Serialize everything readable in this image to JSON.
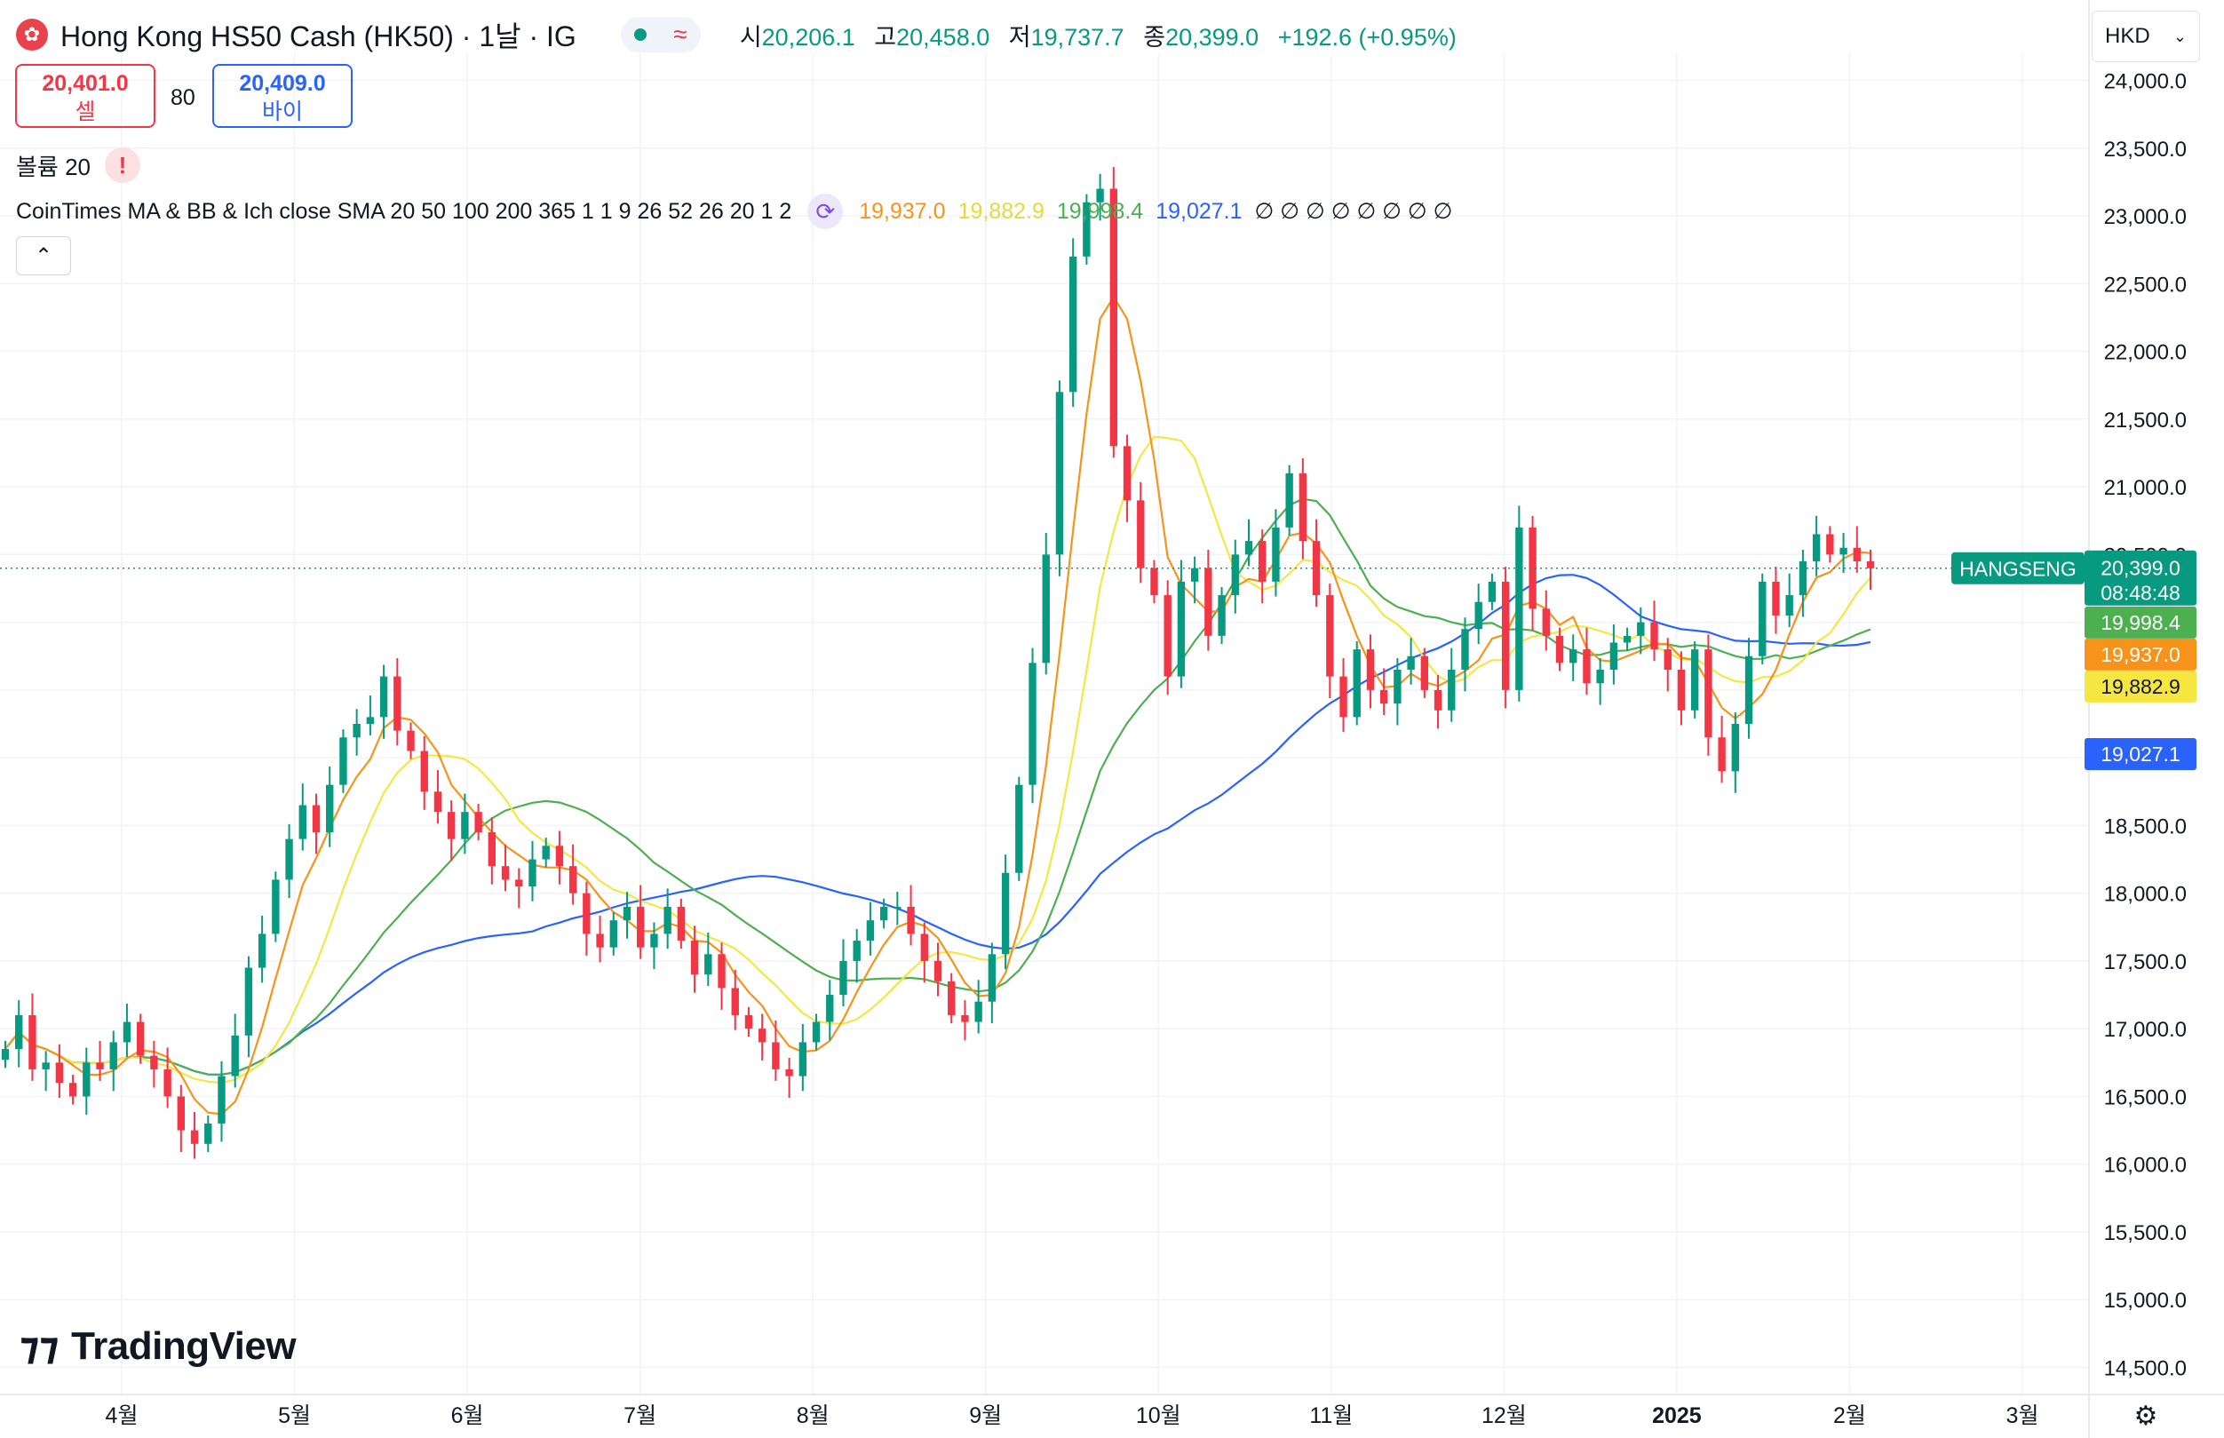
{
  "header": {
    "title": "Hong Kong HS50 Cash (HK50) · 1날 · IG",
    "ohlc": [
      {
        "k": "시",
        "v": "20,206.1"
      },
      {
        "k": "고",
        "v": "20,458.0"
      },
      {
        "k": "저",
        "v": "19,737.7"
      },
      {
        "k": "종",
        "v": "20,399.0"
      }
    ],
    "change": "+192.6 (+0.95%)",
    "sell_price": "20,401.0",
    "sell_label": "셀",
    "spread": "80",
    "buy_price": "20,409.0",
    "buy_label": "바이",
    "volume_label": "볼륨 20",
    "warning": "!",
    "indicator_name": "CoinTimes MA & BB & Ich close SMA 20 50 100 200 365 1 1 9 26 52 26 20 1 2",
    "indicator_values": [
      "19,937.0",
      "19,882.9",
      "19,998.4",
      "19,027.1",
      "∅ ∅ ∅ ∅ ∅ ∅ ∅ ∅"
    ],
    "currency": "HKD",
    "collapse_icon": "chevron-up-icon",
    "sync_icon": "sync-icon",
    "flag_icon": "hong-kong-flag-icon"
  },
  "logo": "TradingView",
  "colors": {
    "up": "#089981",
    "down": "#f23645",
    "sma20": "#f7931a",
    "sma50": "#f5e642",
    "sma100": "#4caf50",
    "sma200": "#2962ff"
  },
  "chart_data": {
    "type": "candlestick",
    "title": "Hong Kong HS50 Cash (HK50)",
    "ylim": [
      14300,
      24200
    ],
    "y_ticks": [
      "14,500.0",
      "15,000.0",
      "15,500.0",
      "16,000.0",
      "16,500.0",
      "17,000.0",
      "17,500.0",
      "18,000.0",
      "18,500.0",
      "19,000.0",
      "19,500.0",
      "20,000.0",
      "20,500.0",
      "21,000.0",
      "21,500.0",
      "22,000.0",
      "22,500.0",
      "23,000.0",
      "23,500.0",
      "24,000.0"
    ],
    "x_ticks": [
      "4월",
      "5월",
      "6월",
      "7월",
      "8월",
      "9월",
      "10월",
      "11월",
      "12월",
      "2025",
      "2월",
      "3월"
    ],
    "grid": true,
    "last_price": "20,399.0",
    "countdown": "08:48:48",
    "symbol_label": "HANGSENG",
    "price_labels": [
      {
        "text": "19,998.4",
        "value": 19998.4,
        "color": "#4caf50"
      },
      {
        "text": "19,937.0",
        "value": 19937.0,
        "color": "#f7931a"
      },
      {
        "text": "19,882.9",
        "value": 19882.9,
        "color": "#f5e642"
      },
      {
        "text": "19,027.1",
        "value": 19027.1,
        "color": "#2962ff"
      }
    ],
    "closes": [
      16850,
      17100,
      16700,
      16750,
      16600,
      16500,
      16750,
      16700,
      16900,
      17050,
      16800,
      16700,
      16500,
      16250,
      16150,
      16300,
      16650,
      16950,
      17450,
      17700,
      18100,
      18400,
      18650,
      18450,
      18800,
      19150,
      19250,
      19300,
      19600,
      19200,
      19050,
      18750,
      18600,
      18400,
      18600,
      18450,
      18200,
      18100,
      18050,
      18250,
      18350,
      18200,
      18000,
      17700,
      17600,
      17800,
      17900,
      17600,
      17700,
      17900,
      17650,
      17400,
      17550,
      17300,
      17100,
      17000,
      16900,
      16700,
      16650,
      16900,
      17050,
      17250,
      17500,
      17650,
      17800,
      17900,
      17900,
      17700,
      17500,
      17350,
      17100,
      17050,
      17200,
      17550,
      18150,
      18800,
      19700,
      20500,
      21700,
      22700,
      23100,
      23200,
      21300,
      20900,
      20400,
      20200,
      19600,
      20300,
      20400,
      19900,
      20200,
      20500,
      20600,
      20300,
      20700,
      21100,
      20600,
      20200,
      19600,
      19300,
      19800,
      19500,
      19400,
      19650,
      19750,
      19500,
      19350,
      19650,
      19950,
      20150,
      20300,
      19500,
      20700,
      20100,
      19900,
      19700,
      19800,
      19550,
      19650,
      19850,
      19900,
      20000,
      19800,
      19650,
      19350,
      19800,
      19150,
      18900,
      19250,
      19750,
      20300,
      20050,
      20200,
      20450,
      20650,
      20500,
      20550,
      20450,
      20399
    ],
    "series": [
      {
        "name": "SMA 20",
        "last": "19,937.0"
      },
      {
        "name": "SMA 50",
        "last": "19,882.9"
      },
      {
        "name": "SMA 100",
        "last": "19,998.4"
      },
      {
        "name": "SMA 200",
        "last": "19,027.1"
      }
    ]
  }
}
